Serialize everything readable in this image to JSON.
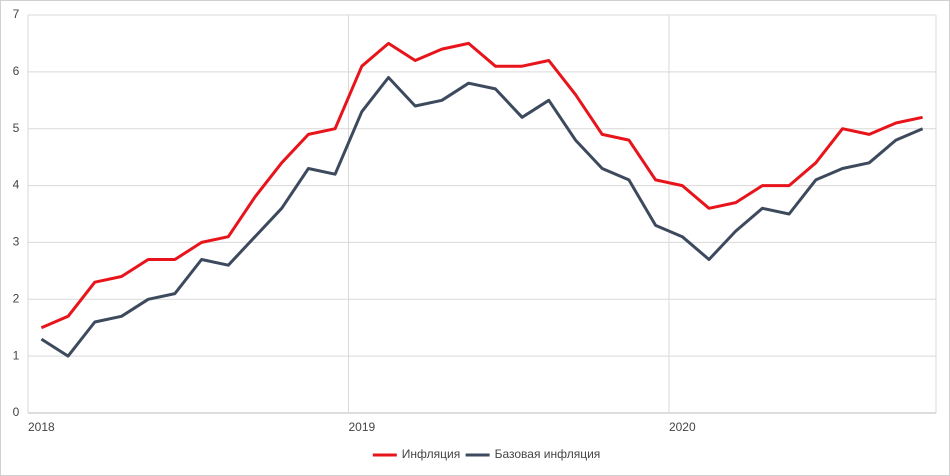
{
  "chart_data": {
    "type": "line",
    "categories": [
      "2018",
      null,
      null,
      null,
      null,
      null,
      null,
      null,
      null,
      null,
      null,
      null,
      "2019",
      null,
      null,
      null,
      null,
      null,
      null,
      null,
      null,
      null,
      null,
      null,
      "2020",
      null,
      null,
      null,
      null,
      null,
      null,
      null,
      null,
      null
    ],
    "series": [
      {
        "name": "Инфляция",
        "color": "#e8141b",
        "values": [
          1.5,
          1.7,
          2.3,
          2.4,
          2.7,
          2.7,
          3.0,
          3.1,
          3.8,
          4.4,
          4.9,
          5.0,
          6.1,
          6.5,
          6.2,
          6.4,
          6.5,
          6.1,
          6.1,
          6.2,
          5.6,
          4.9,
          4.8,
          4.1,
          4.0,
          3.6,
          3.7,
          4.0,
          4.0,
          4.4,
          5.0,
          4.9,
          5.1,
          5.2
        ]
      },
      {
        "name": "Базовая инфляция",
        "color": "#3d4a5e",
        "values": [
          1.3,
          1.0,
          1.6,
          1.7,
          2.0,
          2.1,
          2.7,
          2.6,
          3.1,
          3.6,
          4.3,
          4.2,
          5.3,
          5.9,
          5.4,
          5.5,
          5.8,
          5.7,
          5.2,
          5.5,
          4.8,
          4.3,
          4.1,
          3.3,
          3.1,
          2.7,
          3.2,
          3.6,
          3.5,
          4.1,
          4.3,
          4.4,
          4.8,
          5.0
        ]
      }
    ],
    "ylim": [
      0,
      7
    ],
    "yticks": [
      0,
      1,
      2,
      3,
      4,
      5,
      6,
      7
    ],
    "grid": true,
    "legend": "bottom"
  }
}
